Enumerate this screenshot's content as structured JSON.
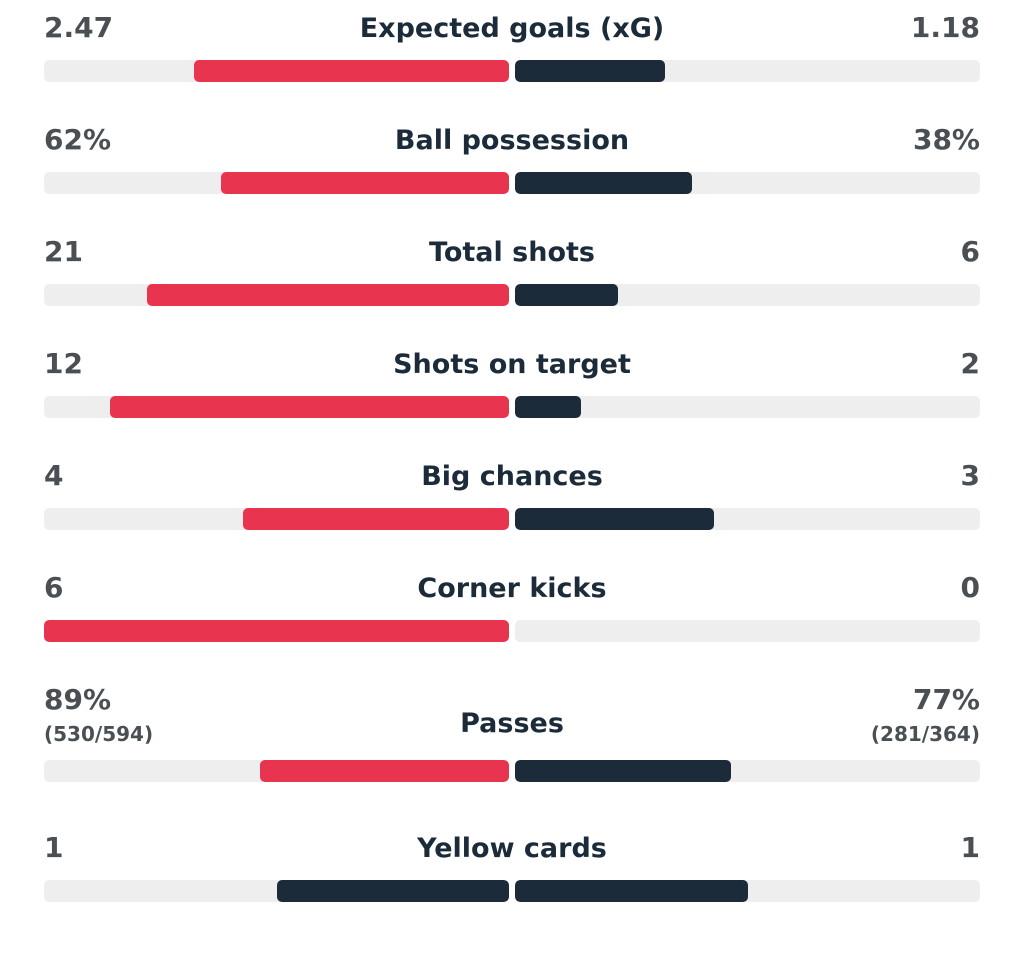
{
  "colors": {
    "home": "#e8344e",
    "away": "#1c2b39",
    "neutral": "#1c2b39",
    "track": "#eeeeee"
  },
  "stats": [
    {
      "label": "Expected goals (xG)",
      "home": 2.47,
      "away": 1.18,
      "home_highlight": true
    },
    {
      "label": "Ball possession",
      "home": {
        "value": 62,
        "label": "62%"
      },
      "away": {
        "value": 38,
        "label": "38%"
      },
      "home_highlight": true
    },
    {
      "label": "Total shots",
      "home": 21,
      "away": 6,
      "home_highlight": true
    },
    {
      "label": "Shots on target",
      "home": 12,
      "away": 2,
      "home_highlight": true
    },
    {
      "label": "Big chances",
      "home": 4,
      "away": 3,
      "home_highlight": true
    },
    {
      "label": "Corner kicks",
      "home": 6,
      "away": 0,
      "home_highlight": true
    },
    {
      "label": "Passes",
      "home": {
        "value": 89,
        "label": "89%",
        "detail": "(530/594)"
      },
      "away": {
        "value": 77,
        "label": "77%",
        "detail": "(281/364)"
      },
      "home_highlight": true
    },
    {
      "label": "Yellow cards",
      "home": 1,
      "away": 1,
      "home_highlight": false
    }
  ]
}
